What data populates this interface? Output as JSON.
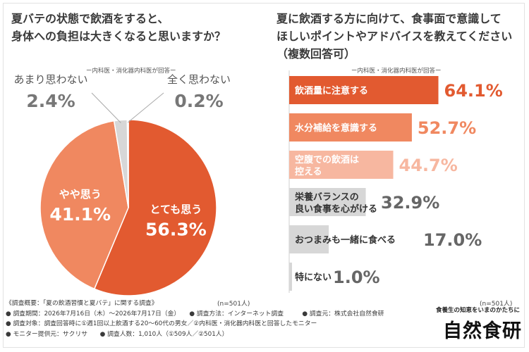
{
  "left_title": [
    "夏バテの状態で飲酒をすると、",
    "身体への負担は大きくなると思いますか？"
  ],
  "right_title": [
    "夏に飲酒する方に向けて、食事面で意識して",
    "ほしいポイントやアドバイスを教えてください",
    "（複数回答可）"
  ],
  "respondent_note": "ー内科医・消化器内科医が回答ー",
  "n_label": "(n=501人)",
  "footer": [
    "《調査概要：「夏の飲酒習慣と夏バテ」に関する調査》",
    "● 調査期間：2026年7月16日（木）〜2026年7月17日（金）　　● 調査方法：インターネット調査　　　● 調査元：株式会社自然食研",
    "● 調査対象：調査回答時に①週1回以上飲酒する20〜60代の男女／②内科医・消化器内科医と回答したモニター",
    "● モニター提供元：サクリサ　　● 調査人数：1,010人（①509人／②501人）"
  ],
  "brand_tagline": "食養生の知恵をいまのかたちに",
  "brand_name": "自然食研",
  "colors": {
    "dark_orange": "#e25a30",
    "mid_orange": "#f08860",
    "light_orange": "#f7b7a0",
    "gray": "#d7d7d7",
    "light_gray": "#e8e8e8"
  },
  "chart_data": [
    {
      "type": "pie",
      "slices": [
        {
          "label": "とても思う",
          "value": 56.3,
          "display": "56.3%",
          "color": "#e25a30"
        },
        {
          "label": "やや思う",
          "value": 41.1,
          "display": "41.1%",
          "color": "#f08860"
        },
        {
          "label": "あまり思わない",
          "value": 2.4,
          "display": "2.4%",
          "color": "#d7d7d7"
        },
        {
          "label": "全く思わない",
          "value": 0.2,
          "display": "0.2%",
          "color": "#e8e8e8"
        }
      ]
    },
    {
      "type": "bar",
      "orientation": "horizontal",
      "categories": [
        "飲酒量に注意する",
        "水分補給を意識する",
        "空腹での飲酒は控える",
        "栄養バランスの良い食事を心がける",
        "おつまみも一緒に食べる",
        "特にない"
      ],
      "category_lines": [
        [
          "飲酒量に注意する"
        ],
        [
          "水分補給を意識する"
        ],
        [
          "空腹での飲酒は",
          "控える"
        ],
        [
          "栄養バランスの",
          "良い食事を心がける"
        ],
        [
          "おつまみも一緒に食べる"
        ],
        [
          "特にない"
        ]
      ],
      "values": [
        64.1,
        52.7,
        44.7,
        32.9,
        17.0,
        1.0
      ],
      "value_labels": [
        "64.1%",
        "52.7%",
        "44.7%",
        "32.9%",
        "17.0%",
        "1.0%"
      ],
      "bar_colors": [
        "#e25a30",
        "#f08860",
        "#f7b7a0",
        "#d7d7d7",
        "#d7d7d7",
        "#d7d7d7"
      ],
      "xlim": [
        0,
        100
      ]
    }
  ]
}
